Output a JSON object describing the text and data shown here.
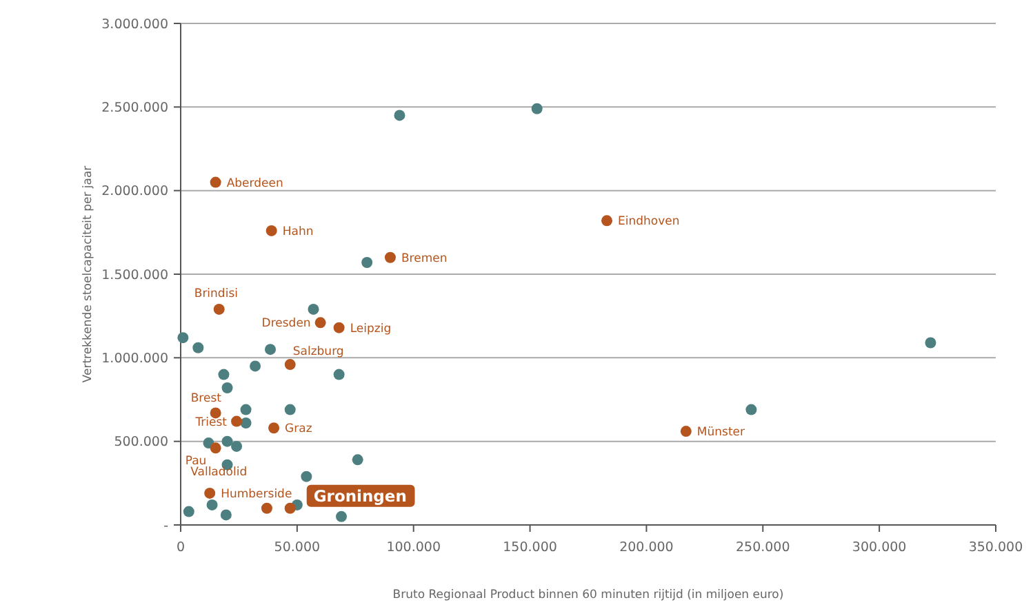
{
  "chart_data": {
    "type": "scatter",
    "xlabel": "Bruto Regionaal Product binnen 60 minuten rijtijd (in miljoen euro)",
    "ylabel": "Vertrekkende stoelcapaciteit per jaar",
    "xlim": [
      0,
      350000
    ],
    "ylim": [
      0,
      3000000
    ],
    "xticks": [
      0,
      {
        "value": 50000,
        "label": "50.000"
      },
      {
        "value": 100000,
        "label": "100.000"
      },
      {
        "value": 150000,
        "label": "150.000"
      },
      {
        "value": 200000,
        "label": "200.000"
      },
      {
        "value": 250000,
        "label": "250.000"
      },
      {
        "value": 300000,
        "label": "300.000"
      },
      {
        "value": 350000,
        "label": "350.000"
      }
    ],
    "yticks": [
      {
        "value": 0,
        "label": "-"
      },
      {
        "value": 500000,
        "label": "500.000"
      },
      {
        "value": 1000000,
        "label": "1.000.000"
      },
      {
        "value": 1500000,
        "label": "1.500.000"
      },
      {
        "value": 2000000,
        "label": "2.000.000"
      },
      {
        "value": 2500000,
        "label": "2.500.000"
      },
      {
        "value": 3000000,
        "label": "3.000.000"
      }
    ],
    "grid": "y",
    "marker": "circle",
    "series": [
      {
        "color": "#4e7f80",
        "x": [
          94000,
          153000,
          80000,
          1000,
          7500,
          57000,
          38500,
          32000,
          18500,
          68000,
          20000,
          28000,
          47000,
          28000,
          20000,
          24000,
          12000,
          20000,
          76000,
          54000,
          3500,
          13500,
          19500,
          50000,
          69000,
          245000,
          322000
        ],
        "values": [
          2450000,
          2490000,
          1570000,
          1120000,
          1060000,
          1290000,
          1050000,
          950000,
          900000,
          900000,
          820000,
          690000,
          690000,
          610000,
          500000,
          470000,
          490000,
          360000,
          390000,
          290000,
          80000,
          120000,
          60000,
          120000,
          50000,
          690000,
          1090000
        ]
      },
      {
        "color": "#b5541c",
        "x": [
          47000,
          15000,
          39000,
          90000,
          183000,
          217000,
          16500,
          60000,
          68000,
          47000,
          15000,
          24000,
          40000,
          15000,
          12500,
          37000
        ],
        "values": [
          100000,
          2050000,
          1760000,
          1600000,
          1820000,
          560000,
          1290000,
          1210000,
          1180000,
          960000,
          670000,
          620000,
          580000,
          460000,
          190000,
          100000
        ]
      }
    ],
    "annotations": [
      {
        "text": "Groningen",
        "x": 47000,
        "y": 100000
      },
      {
        "text": "Aberdeen",
        "x": 15000,
        "y": 2050000
      },
      {
        "text": "Hahn",
        "x": 39000,
        "y": 1760000
      },
      {
        "text": "Bremen",
        "x": 90000,
        "y": 1600000
      },
      {
        "text": "Eindhoven",
        "x": 183000,
        "y": 1820000
      },
      {
        "text": "Münster",
        "x": 217000,
        "y": 560000
      },
      {
        "text": "Brindisi",
        "x": 16500,
        "y": 1290000
      },
      {
        "text": "Dresden",
        "x": 60000,
        "y": 1210000
      },
      {
        "text": "Leipzig",
        "x": 68000,
        "y": 1180000
      },
      {
        "text": "Salzburg",
        "x": 47000,
        "y": 960000
      },
      {
        "text": "Brest",
        "x": 15000,
        "y": 670000
      },
      {
        "text": "Triest",
        "x": 24000,
        "y": 620000
      },
      {
        "text": "Graz",
        "x": 40000,
        "y": 580000
      },
      {
        "text": "Pau",
        "x": 15000,
        "y": 460000
      },
      {
        "text": "Valladolid",
        "x": 12500,
        "y": 190000
      },
      {
        "text": "Humberside",
        "x": 12500,
        "y": 190000
      }
    ]
  }
}
